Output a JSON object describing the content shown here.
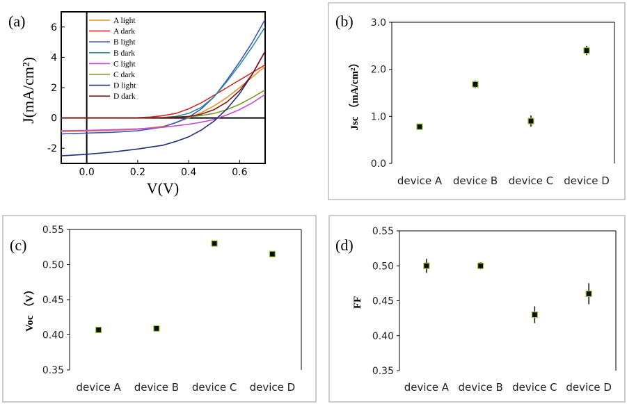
{
  "chart_data": [
    {
      "panel_label": "(a)",
      "type": "line",
      "xlabel": "V(V)",
      "ylabel": "J(mA/cm²)",
      "xlim": [
        -0.1,
        0.7
      ],
      "ylim": [
        -3,
        7
      ],
      "x_ticks": [
        0.0,
        0.2,
        0.4,
        0.6
      ],
      "x_tick_labels": [
        "0.0",
        "0.2",
        "0.4",
        "0.6"
      ],
      "y_ticks": [
        -2,
        0,
        2,
        4,
        6
      ],
      "y_tick_labels": [
        "-2",
        "0",
        "2",
        "4",
        "6"
      ],
      "legend_position": "top-right",
      "series": [
        {
          "name": "A light",
          "color": "#e8922a",
          "x": [
            -0.1,
            0.0,
            0.1,
            0.2,
            0.3,
            0.35,
            0.4,
            0.45,
            0.5,
            0.55,
            0.6,
            0.65,
            0.7
          ],
          "y": [
            -0.9,
            -0.87,
            -0.83,
            -0.75,
            -0.55,
            -0.32,
            0.0,
            0.35,
            0.8,
            1.35,
            2.0,
            2.7,
            3.4
          ]
        },
        {
          "name": "A dark",
          "color": "#d62728",
          "x": [
            -0.1,
            0.0,
            0.1,
            0.2,
            0.25,
            0.3,
            0.35,
            0.4,
            0.45,
            0.5,
            0.55,
            0.6,
            0.65,
            0.7
          ],
          "y": [
            0.0,
            0.0,
            0.0,
            0.02,
            0.06,
            0.15,
            0.3,
            0.6,
            1.0,
            1.5,
            2.0,
            2.5,
            3.0,
            3.5
          ]
        },
        {
          "name": "B light",
          "color": "#3a56c8",
          "x": [
            -0.1,
            0.0,
            0.1,
            0.2,
            0.3,
            0.35,
            0.4,
            0.45,
            0.5,
            0.55,
            0.6,
            0.65,
            0.7
          ],
          "y": [
            -1.05,
            -1.0,
            -0.95,
            -0.85,
            -0.6,
            -0.3,
            0.05,
            0.6,
            1.4,
            2.5,
            3.7,
            5.0,
            6.5
          ]
        },
        {
          "name": "B dark",
          "color": "#2a8f9a",
          "x": [
            -0.1,
            0.0,
            0.1,
            0.2,
            0.3,
            0.35,
            0.4,
            0.45,
            0.5,
            0.55,
            0.6,
            0.65,
            0.7
          ],
          "y": [
            0.0,
            0.0,
            0.0,
            0.0,
            0.03,
            0.1,
            0.3,
            0.7,
            1.4,
            2.4,
            3.5,
            4.7,
            6.0
          ]
        },
        {
          "name": "C light",
          "color": "#c64bd6",
          "x": [
            -0.1,
            0.0,
            0.1,
            0.2,
            0.3,
            0.4,
            0.45,
            0.5,
            0.55,
            0.6,
            0.65,
            0.7
          ],
          "y": [
            -0.85,
            -0.82,
            -0.78,
            -0.72,
            -0.62,
            -0.42,
            -0.28,
            -0.1,
            0.2,
            0.55,
            1.0,
            1.55
          ]
        },
        {
          "name": "C dark",
          "color": "#7a9a2a",
          "x": [
            -0.1,
            0.0,
            0.1,
            0.2,
            0.3,
            0.4,
            0.45,
            0.5,
            0.55,
            0.6,
            0.65,
            0.7
          ],
          "y": [
            0.0,
            0.0,
            0.0,
            0.0,
            0.02,
            0.08,
            0.16,
            0.3,
            0.55,
            0.9,
            1.35,
            1.85
          ]
        },
        {
          "name": "D light",
          "color": "#1f2c7a",
          "x": [
            -0.1,
            0.0,
            0.1,
            0.2,
            0.3,
            0.35,
            0.4,
            0.45,
            0.5,
            0.55,
            0.6,
            0.65,
            0.7
          ],
          "y": [
            -2.5,
            -2.4,
            -2.25,
            -2.05,
            -1.8,
            -1.55,
            -1.25,
            -0.8,
            -0.2,
            0.6,
            1.6,
            2.9,
            4.4
          ]
        },
        {
          "name": "D dark",
          "color": "#7b1a1a",
          "x": [
            -0.1,
            0.0,
            0.1,
            0.2,
            0.3,
            0.4,
            0.45,
            0.5,
            0.55,
            0.6,
            0.65,
            0.7
          ],
          "y": [
            0.0,
            0.0,
            0.0,
            0.0,
            0.02,
            0.1,
            0.25,
            0.55,
            1.05,
            1.8,
            2.9,
            4.4
          ]
        }
      ]
    },
    {
      "panel_label": "(b)",
      "type": "scatter",
      "ylabel": "Jsc （mA/cm²）",
      "categories": [
        "device A",
        "device B",
        "device C",
        "device D"
      ],
      "values": [
        0.78,
        1.68,
        0.9,
        2.4
      ],
      "errors": [
        0.03,
        0.08,
        0.12,
        0.1
      ],
      "ylim": [
        0.0,
        3.0
      ],
      "y_ticks": [
        0.0,
        1.0,
        2.0,
        3.0
      ],
      "y_tick_labels": [
        "0.0",
        "1.0",
        "2.0",
        "3.0"
      ]
    },
    {
      "panel_label": "(c)",
      "type": "scatter",
      "ylabel": "Voc （V）",
      "categories": [
        "device A",
        "device B",
        "device C",
        "device D"
      ],
      "values": [
        0.407,
        0.409,
        0.53,
        0.515
      ],
      "errors": [
        0.0,
        0.0,
        0.0,
        0.0
      ],
      "ylim": [
        0.35,
        0.55
      ],
      "y_ticks": [
        0.35,
        0.4,
        0.45,
        0.5,
        0.55
      ],
      "y_tick_labels": [
        "0.35",
        "0.40",
        "0.45",
        "0.50",
        "0.55"
      ]
    },
    {
      "panel_label": "(d)",
      "type": "scatter",
      "ylabel": "FF",
      "categories": [
        "device A",
        "device B",
        "device C",
        "device D"
      ],
      "values": [
        0.5,
        0.5,
        0.43,
        0.46
      ],
      "errors": [
        0.01,
        0.005,
        0.012,
        0.015
      ],
      "ylim": [
        0.35,
        0.55
      ],
      "y_ticks": [
        0.35,
        0.4,
        0.45,
        0.5,
        0.55
      ],
      "y_tick_labels": [
        "0.35",
        "0.40",
        "0.45",
        "0.50",
        "0.55"
      ]
    }
  ]
}
